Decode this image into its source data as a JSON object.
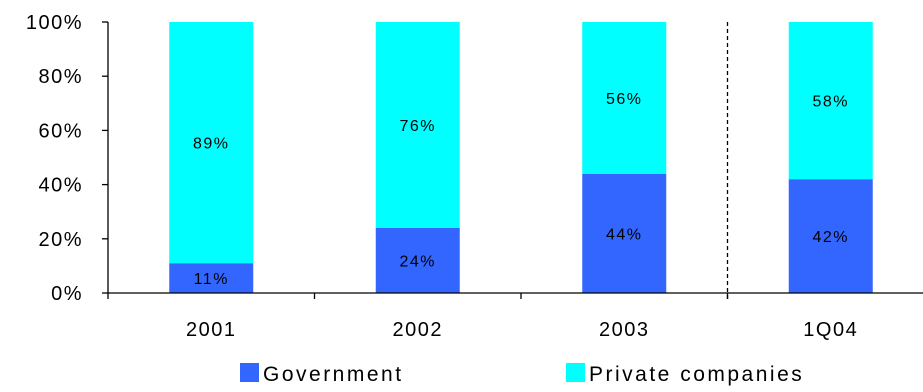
{
  "colors": {
    "government": "#3366ff",
    "private_companies": "#00ffff",
    "axis": "#000000",
    "divider": "#000000",
    "background": "#ffffff"
  },
  "chart_data": {
    "type": "bar",
    "stacked": true,
    "categories": [
      "2001",
      "2002",
      "2003",
      "1Q04"
    ],
    "series": [
      {
        "name": "Government",
        "values": [
          11,
          24,
          44,
          42
        ],
        "labels": [
          "11%",
          "24%",
          "44%",
          "42%"
        ]
      },
      {
        "name": "Private companies",
        "values": [
          89,
          76,
          56,
          58
        ],
        "labels": [
          "89%",
          "76%",
          "56%",
          "58%"
        ]
      }
    ],
    "title": "",
    "xlabel": "",
    "ylabel": "",
    "ylim": [
      0,
      100
    ],
    "yticks": [
      "0%",
      "20%",
      "40%",
      "60%",
      "80%",
      "100%"
    ],
    "grid": false,
    "legend": "bottom",
    "divider_between": [
      "2003",
      "1Q04"
    ]
  }
}
